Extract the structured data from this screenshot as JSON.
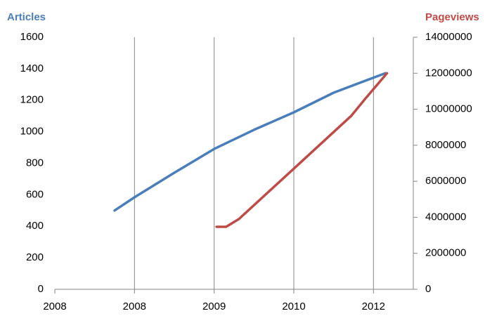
{
  "chart_data": {
    "type": "line",
    "y_title": "Articles",
    "y2_title": "Pageviews",
    "xlim": [
      2007.5,
      2012.0
    ],
    "xticks": [
      {
        "value": 2007.5,
        "label": "2008"
      },
      {
        "value": 2008.5,
        "label": "2008"
      },
      {
        "value": 2009.5,
        "label": "2009"
      },
      {
        "value": 2010.5,
        "label": "2010"
      },
      {
        "value": 2011.5,
        "label": "2012"
      }
    ],
    "ylim": [
      0,
      1600
    ],
    "yticks": [
      0,
      200,
      400,
      600,
      800,
      1000,
      1200,
      1400,
      1600
    ],
    "y2lim": [
      0,
      14000000
    ],
    "y2ticks": [
      0,
      2000000,
      4000000,
      6000000,
      8000000,
      10000000,
      12000000,
      14000000
    ],
    "grid": true,
    "series": [
      {
        "name": "Articles",
        "color": "#4a7ebb",
        "x": [
          2008.25,
          2008.5,
          2009.0,
          2009.5,
          2010.0,
          2010.5,
          2011.0,
          2011.65
        ],
        "values": [
          500,
          584,
          740,
          891,
          1012,
          1123,
          1248,
          1372
        ]
      },
      {
        "name": "Pageviews",
        "color": "#be4b48",
        "axis": "y2",
        "x": [
          2009.53,
          2009.65,
          2009.81,
          2010.5,
          2011.22,
          2011.4,
          2011.67
        ],
        "values": [
          3470000,
          3470000,
          3900000,
          6700000,
          9630000,
          10600000,
          12000000
        ]
      }
    ]
  }
}
